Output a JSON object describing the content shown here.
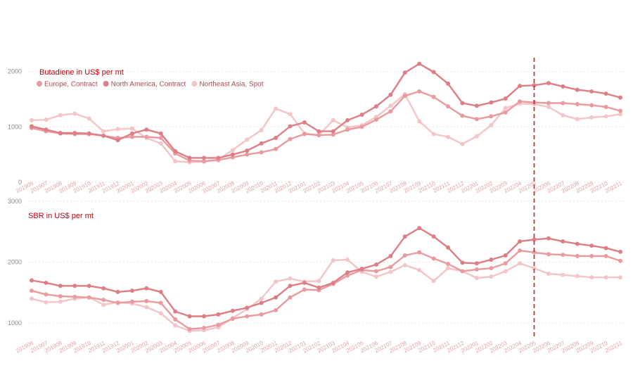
{
  "chart_data": [
    {
      "type": "line",
      "title": "Butadiene  in US$ per mt",
      "ylim": [
        0,
        2300
      ],
      "yticks": [
        0,
        1000,
        2000
      ],
      "grid": true,
      "legend": "top-left",
      "x": [
        "201906",
        "201907",
        "201908",
        "201909",
        "201910",
        "201911",
        "201912",
        "202001",
        "202002",
        "202003",
        "202004",
        "202005",
        "202006",
        "202007",
        "202008",
        "202009",
        "202010",
        "202011",
        "202012",
        "202101",
        "202102",
        "202103",
        "202104",
        "202105",
        "202106",
        "202107",
        "202108",
        "202109",
        "202110",
        "202111",
        "202112",
        "202201",
        "202202",
        "202203",
        "202204",
        "202205",
        "202206",
        "202207",
        "202208",
        "202209",
        "202210",
        "202211"
      ],
      "series": [
        {
          "name": "Europe, Contract",
          "color": "#e99a9e",
          "values": [
            980,
            920,
            880,
            870,
            870,
            840,
            800,
            820,
            820,
            800,
            520,
            390,
            380,
            400,
            450,
            500,
            540,
            600,
            780,
            870,
            850,
            860,
            950,
            1000,
            1130,
            1280,
            1560,
            1640,
            1540,
            1370,
            1200,
            1140,
            1190,
            1260,
            1460,
            1440,
            1430,
            1430,
            1410,
            1390,
            1360,
            1290
          ]
        },
        {
          "name": "North America, Contract",
          "color": "#dd7e86",
          "values": [
            1010,
            950,
            890,
            890,
            880,
            840,
            760,
            880,
            950,
            880,
            560,
            440,
            440,
            440,
            500,
            570,
            700,
            800,
            1010,
            1080,
            920,
            920,
            1120,
            1220,
            1370,
            1580,
            1980,
            2140,
            1990,
            1780,
            1430,
            1380,
            1440,
            1510,
            1740,
            1750,
            1790,
            1730,
            1670,
            1640,
            1600,
            1530
          ]
        },
        {
          "name": "Northeast Asia, Spot",
          "color": "#f4c4c6",
          "values": [
            1120,
            1130,
            1210,
            1240,
            1150,
            920,
            960,
            970,
            800,
            700,
            380,
            360,
            370,
            410,
            580,
            770,
            940,
            1330,
            1230,
            880,
            850,
            1120,
            990,
            1030,
            1180,
            1380,
            1590,
            1100,
            870,
            820,
            690,
            830,
            1030,
            1340,
            1420,
            1410,
            1360,
            1210,
            1140,
            1170,
            1190,
            1230
          ]
        }
      ]
    },
    {
      "type": "line",
      "title": "SBR in US$ per mt",
      "ylim": [
        700,
        3000
      ],
      "yticks": [
        1000,
        2000,
        3000
      ],
      "grid": true,
      "x": [
        "201906",
        "201907",
        "201908",
        "201909",
        "201910",
        "201911",
        "201912",
        "202001",
        "202002",
        "202003",
        "202004",
        "202005",
        "202006",
        "202007",
        "202008",
        "202009",
        "202010",
        "202011",
        "202012",
        "202101",
        "202102",
        "202103",
        "202104",
        "202105",
        "202106",
        "202107",
        "202108",
        "202109",
        "202110",
        "202111",
        "202112",
        "202201",
        "202202",
        "202203",
        "202204",
        "202205",
        "202206",
        "202207",
        "202208",
        "202209",
        "202210",
        "202211"
      ],
      "series": [
        {
          "name": "Europe, Contract",
          "color": "#e99a9e",
          "values": [
            1530,
            1470,
            1440,
            1430,
            1420,
            1380,
            1330,
            1350,
            1360,
            1330,
            1060,
            900,
            920,
            970,
            1070,
            1110,
            1140,
            1210,
            1420,
            1550,
            1540,
            1640,
            1780,
            1870,
            1850,
            1920,
            2110,
            2160,
            2060,
            1970,
            1850,
            1880,
            1900,
            1980,
            2190,
            2160,
            2130,
            2120,
            2100,
            2100,
            2100,
            2020
          ]
        },
        {
          "name": "North America, Contract",
          "color": "#dd7e86",
          "values": [
            1700,
            1660,
            1610,
            1610,
            1610,
            1570,
            1510,
            1530,
            1570,
            1510,
            1190,
            1110,
            1110,
            1140,
            1200,
            1250,
            1330,
            1420,
            1610,
            1660,
            1580,
            1660,
            1830,
            1890,
            1960,
            2100,
            2420,
            2560,
            2420,
            2240,
            1990,
            1980,
            2040,
            2110,
            2340,
            2370,
            2390,
            2340,
            2300,
            2270,
            2230,
            2170
          ]
        },
        {
          "name": "Northeast Asia, Spot",
          "color": "#f4c4c6",
          "values": [
            1400,
            1340,
            1350,
            1400,
            1420,
            1300,
            1340,
            1320,
            1260,
            1160,
            960,
            870,
            880,
            930,
            1080,
            1230,
            1400,
            1680,
            1730,
            1680,
            1690,
            2030,
            2040,
            1840,
            1760,
            1840,
            1950,
            1870,
            1690,
            1900,
            1850,
            1740,
            1760,
            1850,
            1980,
            1900,
            1810,
            1790,
            1770,
            1750,
            1750,
            1750
          ]
        }
      ]
    }
  ],
  "style": {
    "title_color": "#c0000a",
    "tick_color": "#e2a0a4",
    "reference_line_color": "#c8202a",
    "reference_line_at": "202205"
  }
}
